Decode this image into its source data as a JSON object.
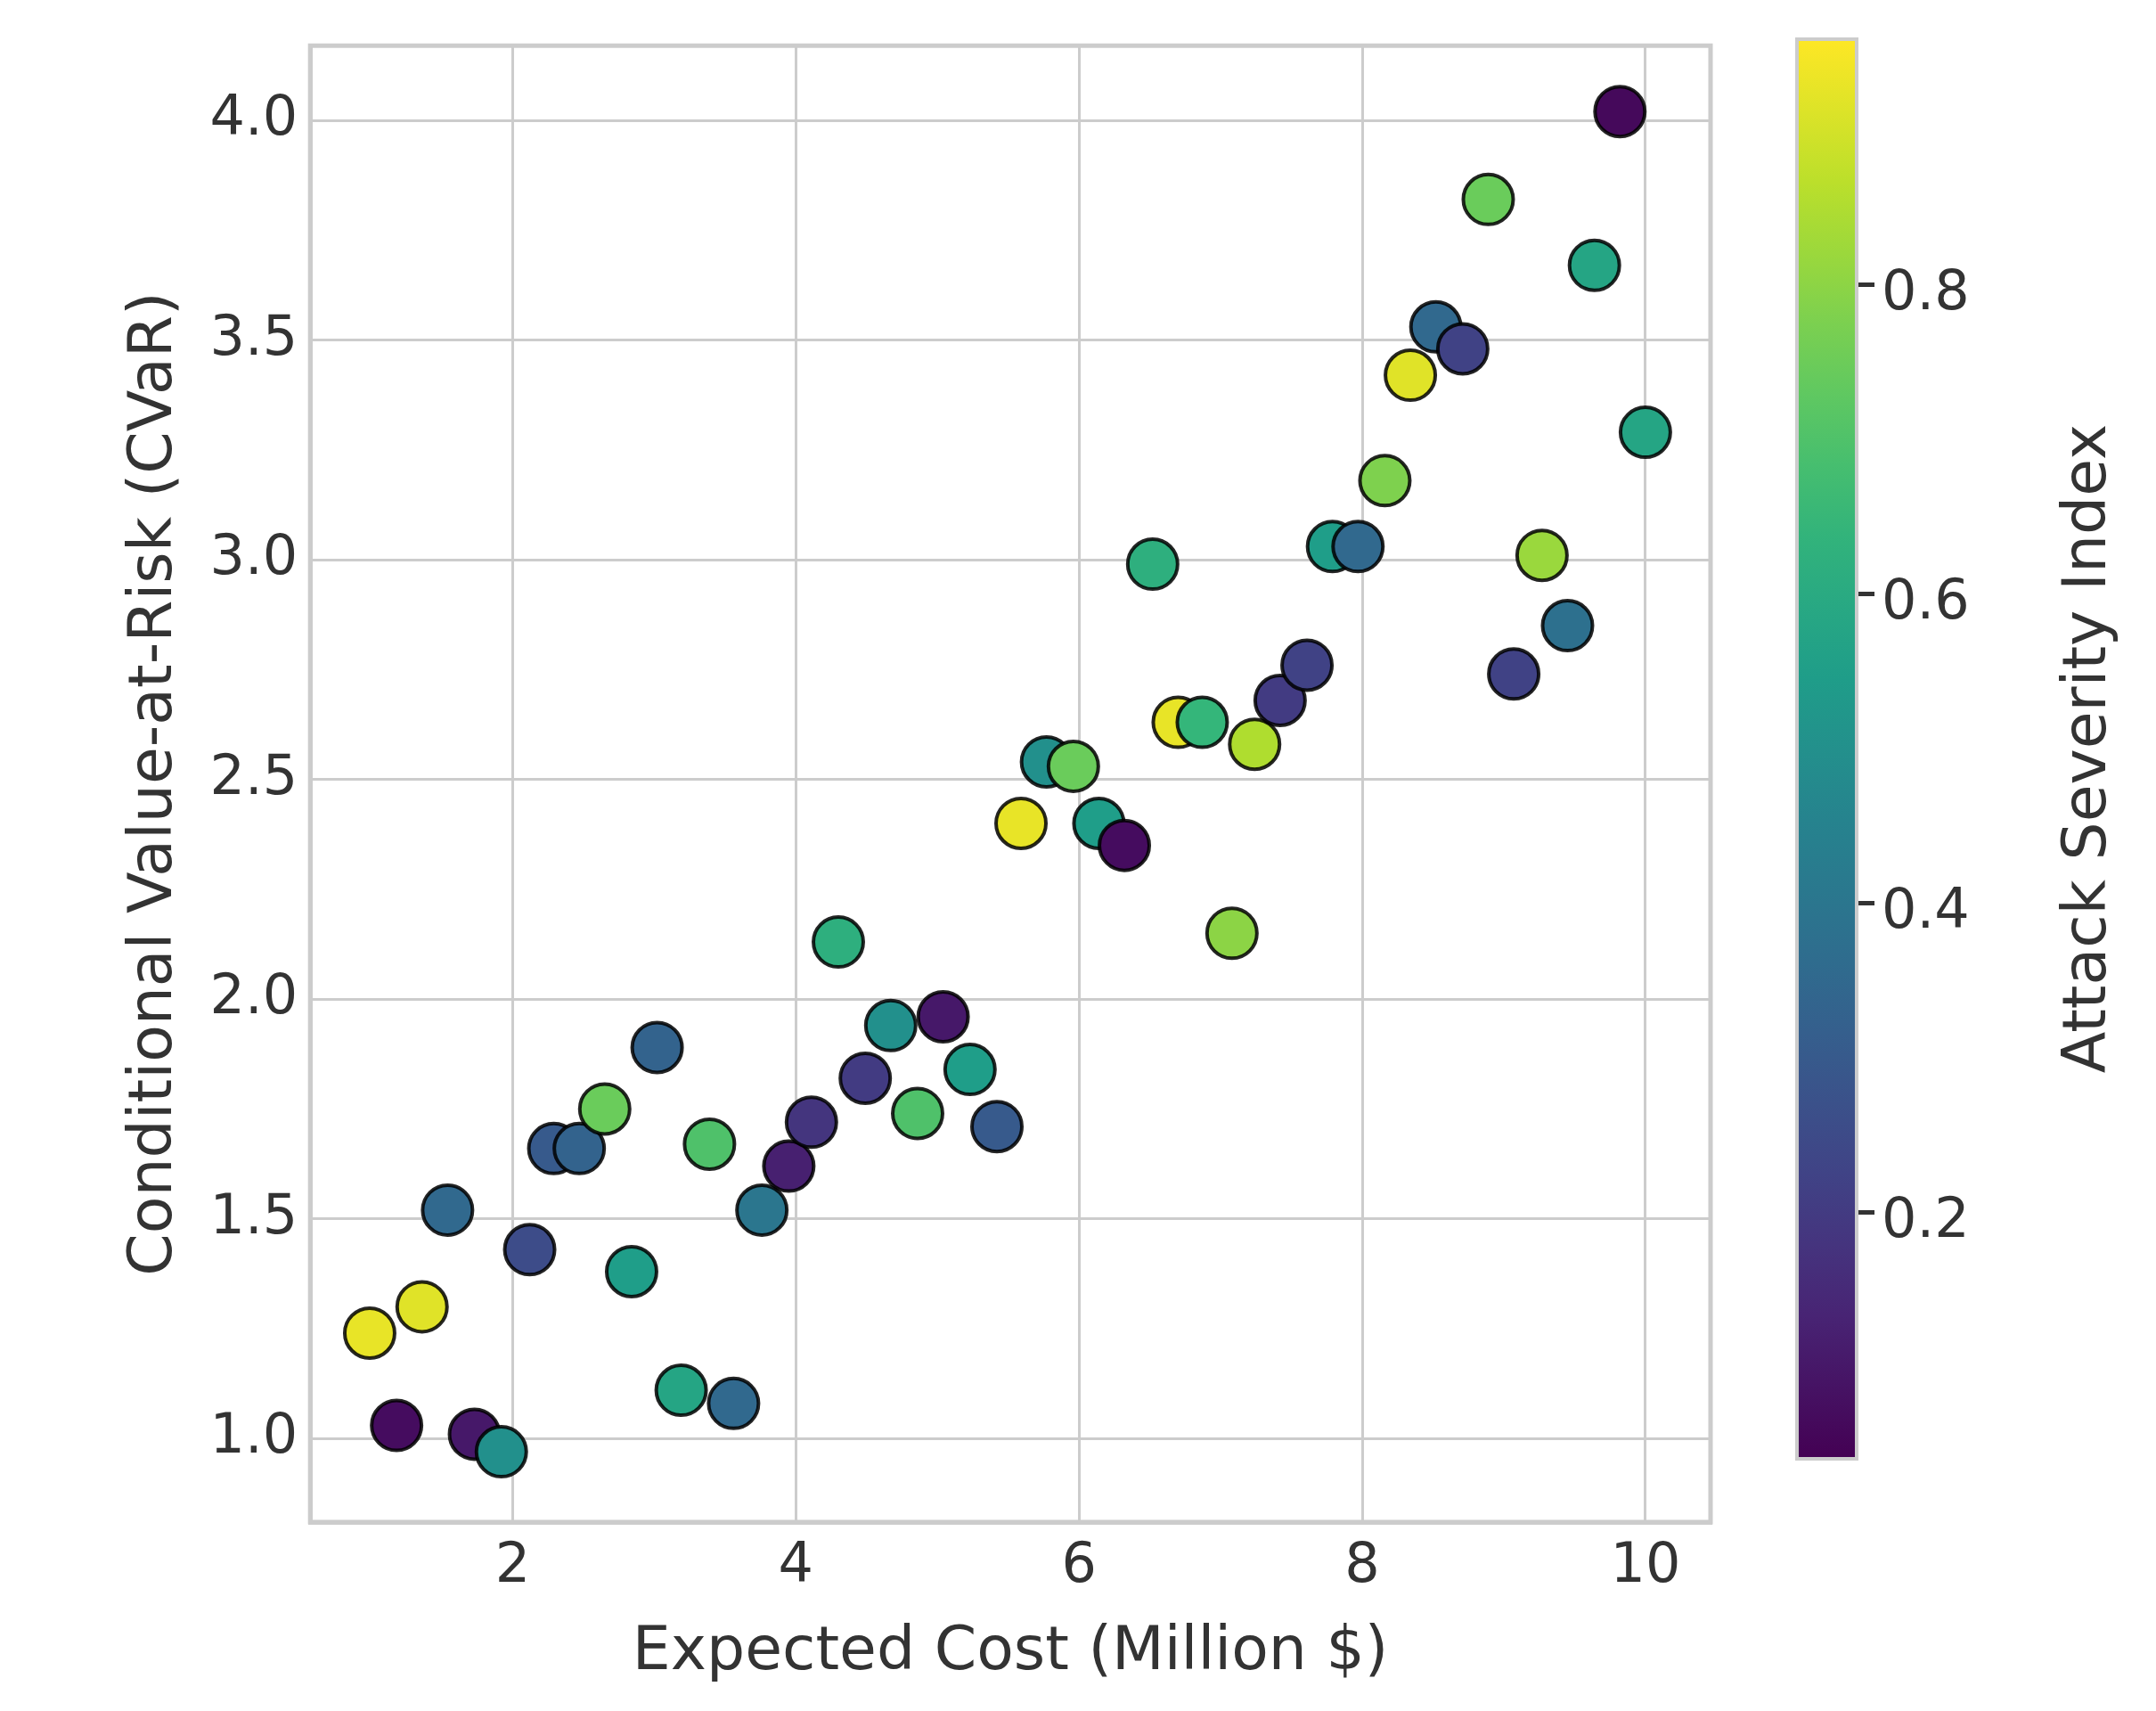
{
  "chart_data": {
    "type": "scatter",
    "xlabel": "Expected Cost (Million $)",
    "ylabel": "Conditional Value-at-Risk (CVaR)",
    "clabel": "Attack Severity Index",
    "x": [
      0.99,
      1.36,
      1.18,
      1.73,
      1.92,
      1.54,
      2.12,
      2.29,
      2.47,
      2.65,
      2.84,
      3.02,
      3.19,
      3.39,
      3.56,
      3.76,
      3.95,
      4.11,
      4.3,
      4.49,
      4.67,
      4.86,
      5.04,
      5.23,
      5.42,
      5.59,
      5.77,
      5.96,
      6.14,
      6.32,
      6.52,
      6.7,
      6.87,
      7.08,
      7.24,
      7.42,
      7.61,
      7.79,
      7.97,
      8.16,
      8.34,
      8.52,
      8.71,
      8.89,
      9.07,
      9.27,
      9.45,
      9.64,
      9.82,
      10.0
    ],
    "values": [
      1.24,
      1.3,
      1.03,
      1.01,
      0.97,
      1.52,
      1.43,
      1.66,
      1.66,
      1.75,
      1.38,
      1.89,
      1.11,
      1.67,
      1.08,
      1.52,
      1.62,
      1.72,
      2.13,
      1.82,
      1.94,
      1.74,
      1.96,
      1.84,
      1.71,
      2.4,
      2.54,
      2.53,
      2.4,
      2.35,
      2.99,
      2.63,
      2.63,
      2.15,
      2.58,
      2.68,
      2.76,
      3.03,
      3.03,
      3.18,
      3.42,
      3.53,
      3.48,
      3.82,
      2.74,
      3.01,
      2.85,
      3.67,
      4.02,
      3.29
    ],
    "cvalues": [
      0.93,
      0.92,
      0.07,
      0.1,
      0.5,
      0.35,
      0.25,
      0.3,
      0.33,
      0.75,
      0.55,
      0.33,
      0.58,
      0.7,
      0.35,
      0.4,
      0.12,
      0.18,
      0.62,
      0.2,
      0.5,
      0.7,
      0.1,
      0.55,
      0.3,
      0.93,
      0.5,
      0.75,
      0.55,
      0.07,
      0.62,
      0.93,
      0.65,
      0.8,
      0.85,
      0.2,
      0.22,
      0.55,
      0.35,
      0.78,
      0.92,
      0.35,
      0.22,
      0.75,
      0.22,
      0.82,
      0.38,
      0.58,
      0.06,
      0.58
    ],
    "xlim": [
      0.57,
      10.46
    ],
    "xticks": [
      2,
      4,
      6,
      8,
      10
    ],
    "ylim": [
      0.81,
      4.17
    ],
    "yticks": [
      {
        "value": 1,
        "label": "1.0"
      },
      {
        "value": 1.5,
        "label": "1.5"
      },
      {
        "value": 2,
        "label": "2.0"
      },
      {
        "value": 2.5,
        "label": "2.5"
      },
      {
        "value": 3,
        "label": "3.0"
      },
      {
        "value": 3.5,
        "label": "3.5"
      },
      {
        "value": 4,
        "label": "4.0"
      }
    ],
    "clim": [
      0.04,
      0.96
    ],
    "cticks": [
      0.2,
      0.4,
      0.6,
      0.8
    ],
    "grid": true,
    "marker": "circle",
    "legend": false
  }
}
